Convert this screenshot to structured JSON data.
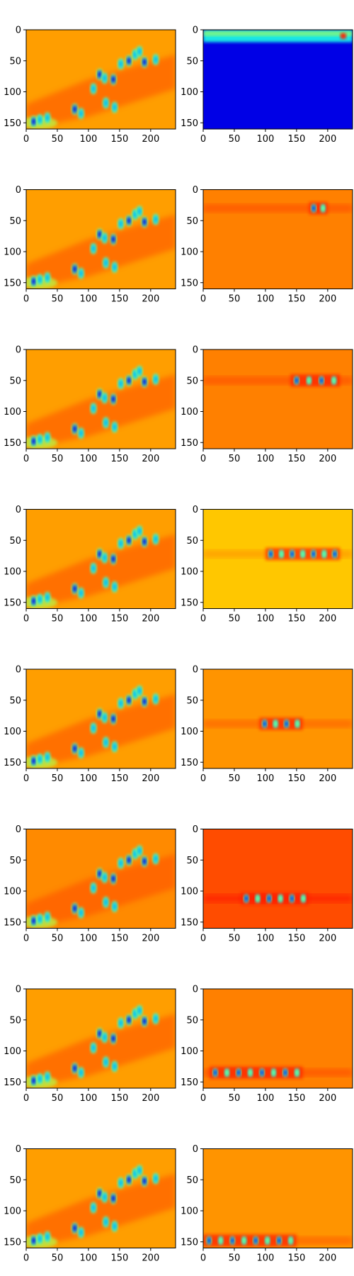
{
  "chart_data": {
    "type": "heatmap",
    "layout": {
      "rows": 8,
      "cols": 2
    },
    "colormap": "jet",
    "image_size": {
      "width": 240,
      "height": 160
    },
    "xlim": [
      0,
      240
    ],
    "ylim": [
      160,
      0
    ],
    "x_ticks": [
      0,
      50,
      100,
      150,
      200
    ],
    "y_ticks": [
      0,
      50,
      100,
      150
    ],
    "x_tick_labels": [
      "0",
      "50",
      "100",
      "150",
      "200"
    ],
    "y_tick_labels": [
      "0",
      "50",
      "100",
      "150"
    ],
    "panels": [
      {
        "row": 0,
        "col": 0,
        "background": 0.72,
        "content": "full-scene"
      },
      {
        "row": 0,
        "col": 1,
        "background": 0.1,
        "content": "top-band",
        "band_y": [
          0,
          20
        ]
      },
      {
        "row": 1,
        "col": 0,
        "background": 0.72,
        "content": "full-scene"
      },
      {
        "row": 1,
        "col": 1,
        "background": 0.75,
        "content": "band",
        "band_y": 30,
        "band_x": [
          170,
          200
        ]
      },
      {
        "row": 2,
        "col": 0,
        "background": 0.72,
        "content": "full-scene"
      },
      {
        "row": 2,
        "col": 1,
        "background": 0.75,
        "content": "band",
        "band_y": 50,
        "band_x": [
          140,
          220
        ]
      },
      {
        "row": 3,
        "col": 0,
        "background": 0.72,
        "content": "full-scene"
      },
      {
        "row": 3,
        "col": 1,
        "background": 0.68,
        "content": "band",
        "band_y": 72,
        "band_x": [
          100,
          220
        ]
      },
      {
        "row": 4,
        "col": 0,
        "background": 0.72,
        "content": "full-scene"
      },
      {
        "row": 4,
        "col": 1,
        "background": 0.73,
        "content": "band",
        "band_y": 88,
        "band_x": [
          90,
          160
        ]
      },
      {
        "row": 5,
        "col": 0,
        "background": 0.74,
        "content": "full-scene"
      },
      {
        "row": 5,
        "col": 1,
        "background": 0.8,
        "content": "band",
        "band_y": 112,
        "band_x": [
          60,
          170
        ]
      },
      {
        "row": 6,
        "col": 0,
        "background": 0.72,
        "content": "full-scene"
      },
      {
        "row": 6,
        "col": 1,
        "background": 0.75,
        "content": "band",
        "band_y": 135,
        "band_x": [
          10,
          160
        ]
      },
      {
        "row": 7,
        "col": 0,
        "background": 0.72,
        "content": "full-scene"
      },
      {
        "row": 7,
        "col": 1,
        "background": 0.73,
        "content": "band",
        "band_y": 148,
        "band_x": [
          0,
          150
        ]
      }
    ]
  }
}
